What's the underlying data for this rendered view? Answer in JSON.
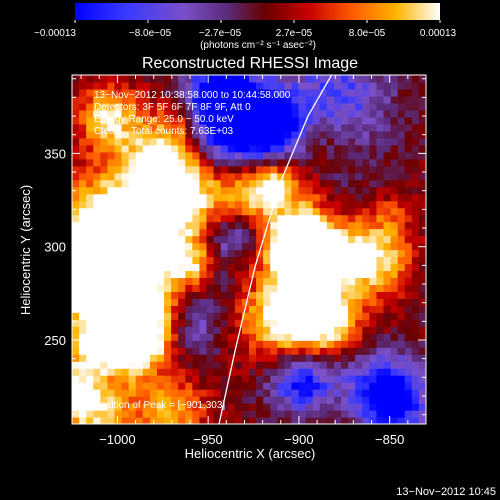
{
  "chart_data": {
    "type": "heatmap",
    "title": "Reconstructed RHESSI Image",
    "xlabel": "Heliocentric X (arcsec)",
    "ylabel": "Heliocentric Y (arcsec)",
    "xlim": [
      -1025,
      -830
    ],
    "ylim": [
      205,
      392
    ],
    "x_ticks": [
      {
        "value": -1000,
        "label": "−1000"
      },
      {
        "value": -950,
        "label": "−950"
      },
      {
        "value": -900,
        "label": "−900"
      },
      {
        "value": -850,
        "label": "−850"
      }
    ],
    "y_ticks": [
      {
        "value": 250,
        "label": "250"
      },
      {
        "value": 300,
        "label": "300"
      },
      {
        "value": 350,
        "label": "350"
      }
    ],
    "colorbar": {
      "min": -0.00013,
      "max": 0.00013,
      "tick_labels": [
        "−0.00013",
        "−8.0e−05",
        "−2.7e−05",
        "2.7e−05",
        "8.0e−05",
        "0.00013"
      ],
      "units_text": "(photons cm⁻² s⁻¹ asec⁻²)",
      "colors": [
        "#0000ff",
        "#3a3aff",
        "#7a50c8",
        "#5a2a78",
        "#6a0000",
        "#c80000",
        "#ff5a00",
        "#ffb400",
        "#ffffff"
      ]
    },
    "annotations": [
      "13−Nov−2012 10:38:58.000 to 10:44:58.000",
      "Detectors: 3F 5F 6F 7F 8F 9F, Att 0",
      "Energy Range: 25.0 − 50.0 keV",
      "Clean    Total counts: 7.63E+03"
    ],
    "peak_label": "Position of Peak = [−901,303]",
    "peak_position": [
      -901,
      303
    ],
    "limb_curve": {
      "points": [
        [
          -944,
          205
        ],
        [
          -935,
          245
        ],
        [
          -924,
          290
        ],
        [
          -910,
          335
        ],
        [
          -895,
          370
        ],
        [
          -882,
          392
        ]
      ]
    },
    "timestamp": "13−Nov−2012 10:45"
  }
}
